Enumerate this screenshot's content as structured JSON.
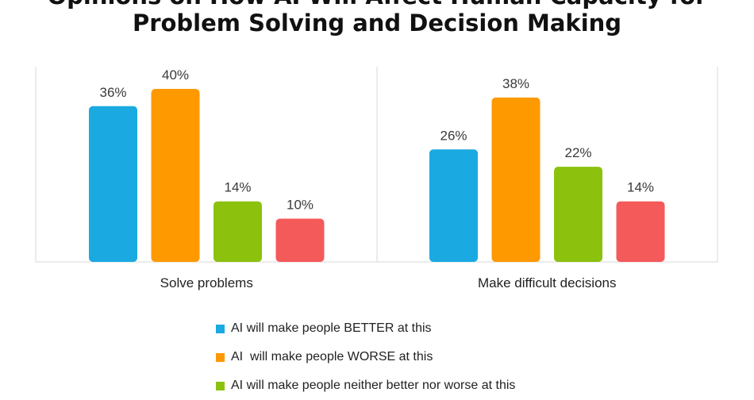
{
  "title": {
    "line1": "Opinions on How AI Will Affect Human Capacity for",
    "line2": "Problem Solving and Decision Making"
  },
  "chart_data": {
    "type": "bar",
    "title": "Opinions on How AI Will Affect Human Capacity for Problem Solving and Decision Making",
    "categories": [
      "Solve problems",
      "Make difficult decisions"
    ],
    "series": [
      {
        "name": "AI will make people BETTER at this",
        "values": [
          36,
          26
        ],
        "labels": [
          "36%",
          "26%"
        ],
        "color": "#1aa9e1"
      },
      {
        "name": "AI  will make people WORSE at this",
        "values": [
          40,
          38
        ],
        "labels": [
          "40%",
          "38%"
        ],
        "color": "#ff9900"
      },
      {
        "name": "AI will make people neither better nor worse at this",
        "values": [
          14,
          22
        ],
        "labels": [
          "14%",
          "22%"
        ],
        "color": "#8cc10e"
      },
      {
        "name": "",
        "values": [
          10,
          14
        ],
        "labels": [
          "10%",
          "14%"
        ],
        "color": "#f55a5a"
      }
    ],
    "ylim": [
      0,
      40
    ],
    "unit": "%",
    "grid": false,
    "legend_position": "bottom"
  },
  "legend": {
    "items": [
      {
        "label": "AI will make people BETTER at this",
        "color": "#1aa9e1"
      },
      {
        "label": "AI  will make people WORSE at this",
        "color": "#ff9900"
      },
      {
        "label": "AI will make people neither better nor worse at this",
        "color": "#8cc10e"
      }
    ]
  }
}
